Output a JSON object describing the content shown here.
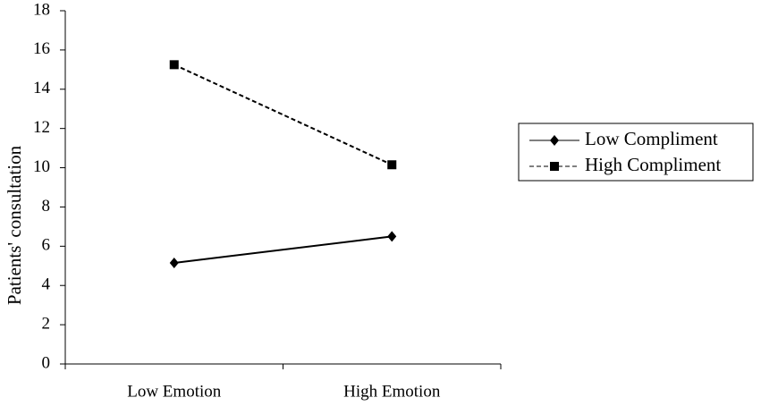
{
  "chart_data": {
    "type": "line",
    "y_label": "Patients' consultation",
    "categories": [
      "Low Emotion",
      "High Emotion"
    ],
    "series": [
      {
        "name": "Low Compliment",
        "color": "#000000",
        "line_style": "solid",
        "marker": "diamond",
        "values": [
          5.15,
          6.5
        ]
      },
      {
        "name": "High Compliment",
        "color": "#000000",
        "line_style": "dashed",
        "marker": "square",
        "values": [
          15.25,
          10.15
        ]
      }
    ],
    "ylim": [
      0,
      18
    ],
    "yticks": [
      0,
      2,
      4,
      6,
      8,
      10,
      12,
      14,
      16,
      18
    ],
    "grid": false,
    "legend": "right"
  }
}
